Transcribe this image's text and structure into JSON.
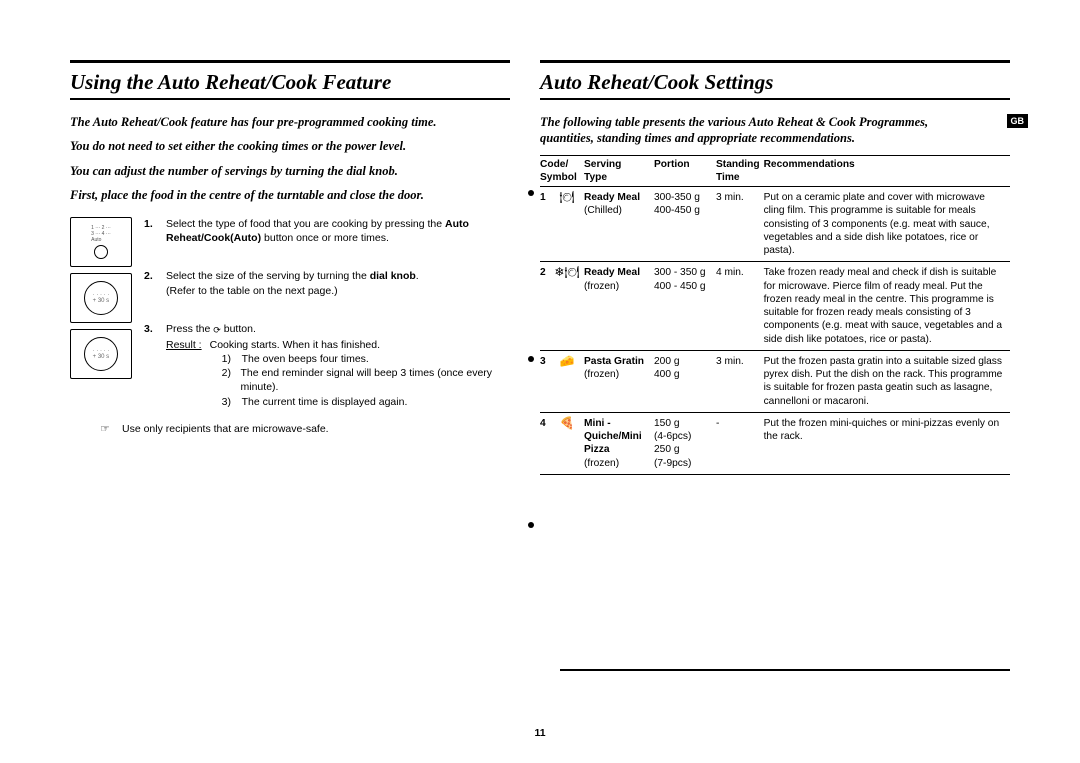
{
  "page_number": "11",
  "gb_label": "GB",
  "left": {
    "heading": "Using the Auto Reheat/Cook Feature",
    "intro": [
      "The Auto Reheat/Cook feature has four pre-programmed cooking time.",
      "You do not need to set either the cooking times or the power level.",
      "You can adjust the number of servings by turning the dial knob.",
      "First, place the food in the centre of the turntable and close the door."
    ],
    "steps": [
      {
        "n": "1.",
        "text_pre": "Select the type of food that you are cooking by pressing the ",
        "text_bold": "Auto Reheat/Cook(Auto)",
        "text_post": " button once or more times."
      },
      {
        "n": "2.",
        "text_pre": "Select the size of the serving by turning the ",
        "text_bold": "dial knob",
        "text_post": ".\n(Refer to the table on the next page.)"
      },
      {
        "n": "3.",
        "text_pre": "Press the ",
        "text_glyph": "⟳",
        "text_post": " button.",
        "result_label": "Result :",
        "result_intro": "Cooking starts. When it has finished.",
        "results": [
          "The oven beeps four times.",
          "The end reminder signal will beep 3 times (once every minute).",
          "The current time is displayed again."
        ]
      }
    ],
    "note_symbol": "☞",
    "note": "Use only recipients that are microwave-safe."
  },
  "right": {
    "heading": "Auto Reheat/Cook Settings",
    "intro": "The following table presents the various Auto Reheat & Cook Programmes, quantities, standing times and appropriate recommendations.",
    "headers": {
      "code": "Code/\nSymbol",
      "serving": "Serving\nType",
      "portion": "Portion",
      "standing": "Standing\nTime",
      "rec": "Recommendations"
    },
    "rows": [
      {
        "code": "1",
        "symbol": "🍽",
        "serving_bold": "Ready Meal",
        "serving_sub": "(Chilled)",
        "portion": "300-350 g\n400-450 g",
        "standing": "3 min.",
        "rec": "Put on a ceramic plate and cover with microwave cling film. This programme is suitable for meals consisting of 3 components (e.g. meat with sauce, vegetables and a side dish like potatoes, rice or pasta)."
      },
      {
        "code": "2",
        "symbol": "❄🍽",
        "serving_bold": "Ready Meal",
        "serving_sub": "(frozen)",
        "portion": "300 - 350 g\n400 - 450 g",
        "standing": "4 min.",
        "rec": "Take frozen ready meal and check if dish is suitable for microwave. Pierce film of ready meal. Put the frozen ready meal in the centre. This programme is suitable for frozen ready meals consisting of 3 components (e.g. meat with sauce, vegetables and a side dish like potatoes, rice or pasta)."
      },
      {
        "code": "3",
        "symbol": "🧀",
        "serving_bold": "Pasta Gratin",
        "serving_sub": "(frozen)",
        "portion": "200 g\n400 g",
        "standing": "3 min.",
        "rec": "Put the frozen pasta gratin into a suitable sized glass pyrex dish. Put the dish on the rack. This programme is suitable for frozen pasta geatin such as lasagne, cannelloni or macaroni."
      },
      {
        "code": "4",
        "symbol": "🍕",
        "serving_bold": "Mini -\nQuiche/Mini\nPizza",
        "serving_sub": "(frozen)",
        "portion": "150 g\n(4-6pcs)\n250 g\n(7-9pcs)",
        "standing": "-",
        "rec": "Put the frozen mini-quiches or mini-pizzas evenly on the rack."
      }
    ]
  }
}
